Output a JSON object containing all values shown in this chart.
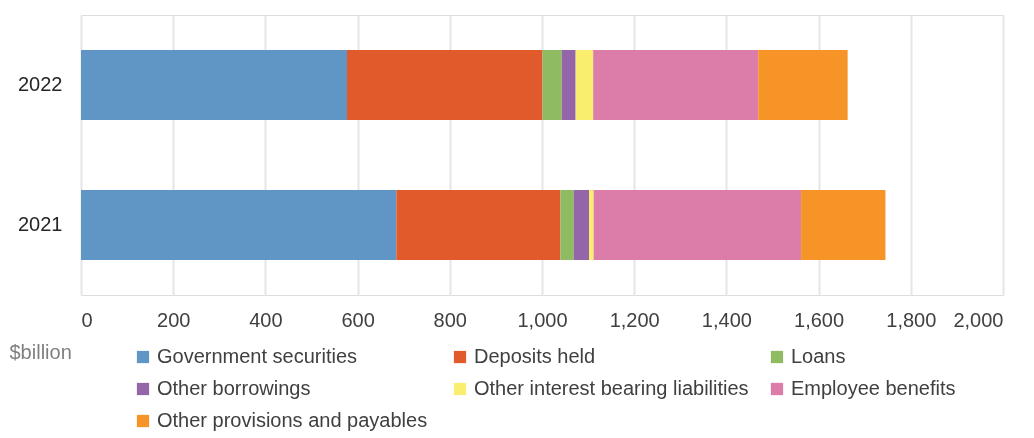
{
  "chart_data": {
    "type": "bar",
    "orientation": "horizontal",
    "stacked": true,
    "categories": [
      "2022",
      "2021"
    ],
    "series": [
      {
        "name": "Government securities",
        "color": "#5f96c6",
        "values": [
          577,
          684
        ]
      },
      {
        "name": "Deposits held",
        "color": "#e05a2b",
        "values": [
          424,
          356
        ]
      },
      {
        "name": "Loans",
        "color": "#8fbb62",
        "values": [
          42,
          29
        ]
      },
      {
        "name": "Other borrowings",
        "color": "#9565aa",
        "values": [
          30,
          33
        ]
      },
      {
        "name": "Other interest bearing liabilities",
        "color": "#f9ee6e",
        "values": [
          38,
          10
        ]
      },
      {
        "name": "Employee benefits",
        "color": "#dc7ca8",
        "values": [
          358,
          450
        ]
      },
      {
        "name": "Other provisions and payables",
        "color": "#f69427",
        "values": [
          194,
          183
        ]
      }
    ],
    "xlim": [
      0,
      2000
    ],
    "xticks": [
      0,
      200,
      400,
      600,
      800,
      {
        "value": 1000,
        "label": "1,000"
      },
      {
        "value": 1200,
        "label": "1,200"
      },
      {
        "value": 1400,
        "label": "1,400"
      },
      {
        "value": 1600,
        "label": "1,600"
      },
      {
        "value": 1800,
        "label": "1,800"
      },
      {
        "value": 2000,
        "label": "2,000"
      }
    ],
    "xlabel": "$billion",
    "grid": "x",
    "legend": "bottom"
  }
}
